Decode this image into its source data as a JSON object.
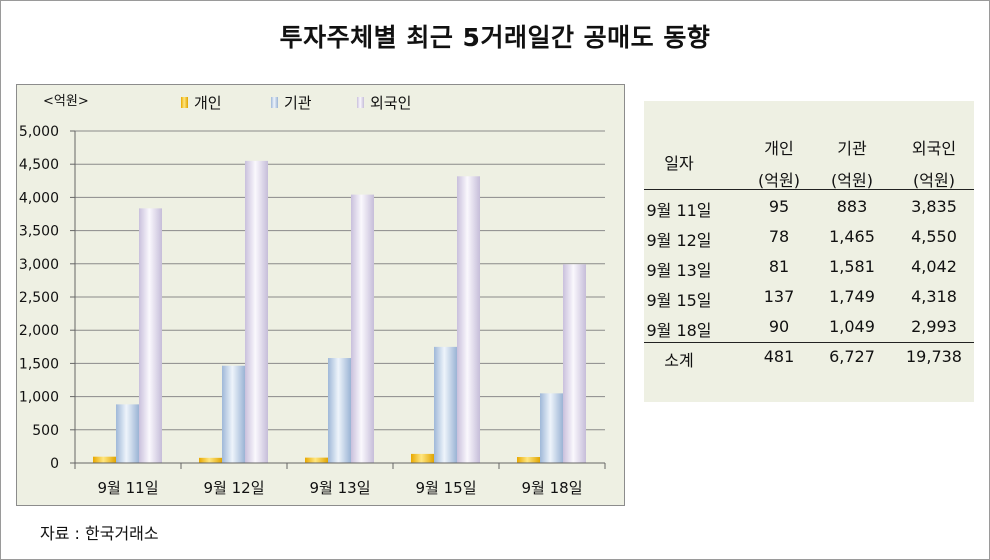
{
  "title": "투자주체별 최근 5거래일간 공매도 동향",
  "source": "자료 : 한국거래소",
  "chart_data": {
    "type": "bar",
    "unit_label": "<억원>",
    "categories": [
      "9월 11일",
      "9월 12일",
      "9월 13일",
      "9월 15일",
      "9월 18일"
    ],
    "series": [
      {
        "name": "개인",
        "values": [
          95,
          78,
          81,
          137,
          90
        ],
        "color": "#f2c200"
      },
      {
        "name": "기관",
        "values": [
          883,
          1465,
          1581,
          1749,
          1049
        ],
        "color": "#b8cde6"
      },
      {
        "name": "외국인",
        "values": [
          3835,
          4550,
          4042,
          4318,
          2993
        ],
        "color": "#ddd6ea"
      }
    ],
    "ylim": [
      0,
      5000
    ],
    "yticks": [
      0,
      500,
      1000,
      1500,
      2000,
      2500,
      3000,
      3500,
      4000,
      4500,
      5000
    ],
    "ytick_labels": [
      "0",
      "500",
      "1,000",
      "1,500",
      "2,000",
      "2,500",
      "3,000",
      "3,500",
      "4,000",
      "4,500",
      "5,000"
    ],
    "grid": true,
    "legend_position": "top"
  },
  "table": {
    "headers": [
      {
        "line1": "일자",
        "line2": ""
      },
      {
        "line1": "개인",
        "line2": "(억원)"
      },
      {
        "line1": "기관",
        "line2": "(억원)"
      },
      {
        "line1": "외국인",
        "line2": "(억원)"
      }
    ],
    "rows": [
      [
        "9월 11일",
        "95",
        "883",
        "3,835"
      ],
      [
        "9월 12일",
        "78",
        "1,465",
        "4,550"
      ],
      [
        "9월 13일",
        "81",
        "1,581",
        "4,042"
      ],
      [
        "9월 15일",
        "137",
        "1,749",
        "4,318"
      ],
      [
        "9월 18일",
        "90",
        "1,049",
        "2,993"
      ]
    ],
    "total": [
      "소계",
      "481",
      "6,727",
      "19,738"
    ]
  }
}
